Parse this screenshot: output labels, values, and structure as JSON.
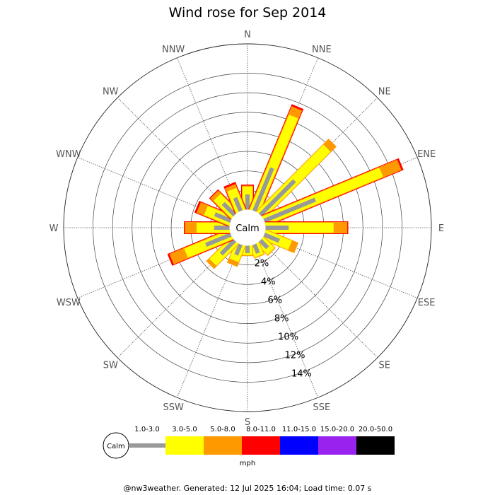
{
  "chart_data": {
    "type": "wind-rose",
    "title": "Wind rose for Sep 2014",
    "directions": [
      "N",
      "NNE",
      "NE",
      "ENE",
      "E",
      "ESE",
      "SE",
      "SSE",
      "S",
      "SSW",
      "SW",
      "WSW",
      "W",
      "WNW",
      "NW",
      "NNW"
    ],
    "radial_axis": {
      "ticks": [
        2,
        4,
        6,
        8,
        10,
        12,
        14
      ],
      "tick_labels": [
        "2%",
        "4%",
        "6%",
        "8%",
        "10%",
        "12%",
        "14%"
      ],
      "max": 17
    },
    "center_label": "Calm",
    "unit": "mph",
    "bins": [
      {
        "label": "1.0-3.0",
        "color": "#999999",
        "width": 6
      },
      {
        "label": "3.0-5.0",
        "color": "#ffff00",
        "width": 14
      },
      {
        "label": "5.0-8.0",
        "color": "#ff9900",
        "width": 16
      },
      {
        "label": "8.0-11.0",
        "color": "#ff0000",
        "width": 18
      },
      {
        "label": "11.0-15.0",
        "color": "#0000ff",
        "width": 20
      },
      {
        "label": "15.0-20.0",
        "color": "#9922ee",
        "width": 22
      },
      {
        "label": "20.0-50.0",
        "color": "#000000",
        "width": 24
      }
    ],
    "cumulative_percent": [
      [
        1.6,
        2.4,
        2.5,
        2.6,
        2.6,
        2.6,
        2.6
      ],
      [
        4.8,
        10.5,
        11.4,
        11.6,
        11.6,
        11.6,
        11.6
      ],
      [
        5.0,
        9.7,
        10.5,
        10.5,
        10.5,
        10.5,
        10.5
      ],
      [
        5.7,
        13.0,
        15.0,
        15.2,
        15.2,
        15.2,
        15.2
      ],
      [
        2.4,
        7.0,
        8.4,
        8.5,
        8.5,
        8.5,
        8.5
      ],
      [
        1.7,
        2.9,
        3.6,
        3.6,
        3.6,
        3.6,
        3.6
      ],
      [
        1.1,
        1.6,
        1.7,
        1.7,
        1.7,
        1.7,
        1.7
      ],
      [
        1.0,
        1.3,
        1.4,
        1.4,
        1.4,
        1.4,
        1.4
      ],
      [
        0.8,
        1.0,
        1.1,
        1.1,
        1.1,
        1.1,
        1.1
      ],
      [
        1.2,
        1.8,
        2.3,
        2.3,
        2.3,
        2.3,
        2.3
      ],
      [
        2.0,
        3.2,
        3.6,
        3.6,
        3.6,
        3.6,
        3.6
      ],
      [
        2.8,
        5.0,
        6.6,
        6.8,
        6.8,
        6.8,
        6.8
      ],
      [
        1.6,
        3.4,
        4.6,
        4.7,
        4.7,
        4.7,
        4.7
      ],
      [
        1.8,
        2.8,
        3.6,
        3.8,
        3.8,
        3.8,
        3.8
      ],
      [
        1.7,
        2.6,
        3.0,
        3.1,
        3.1,
        3.1,
        3.1
      ],
      [
        1.5,
        2.4,
        2.8,
        3.0,
        3.0,
        3.0,
        3.0
      ]
    ],
    "grid": true
  },
  "footer": "@nw3weather. Generated: 12 Jul 2025 16:04; Load time: 0.07 s"
}
